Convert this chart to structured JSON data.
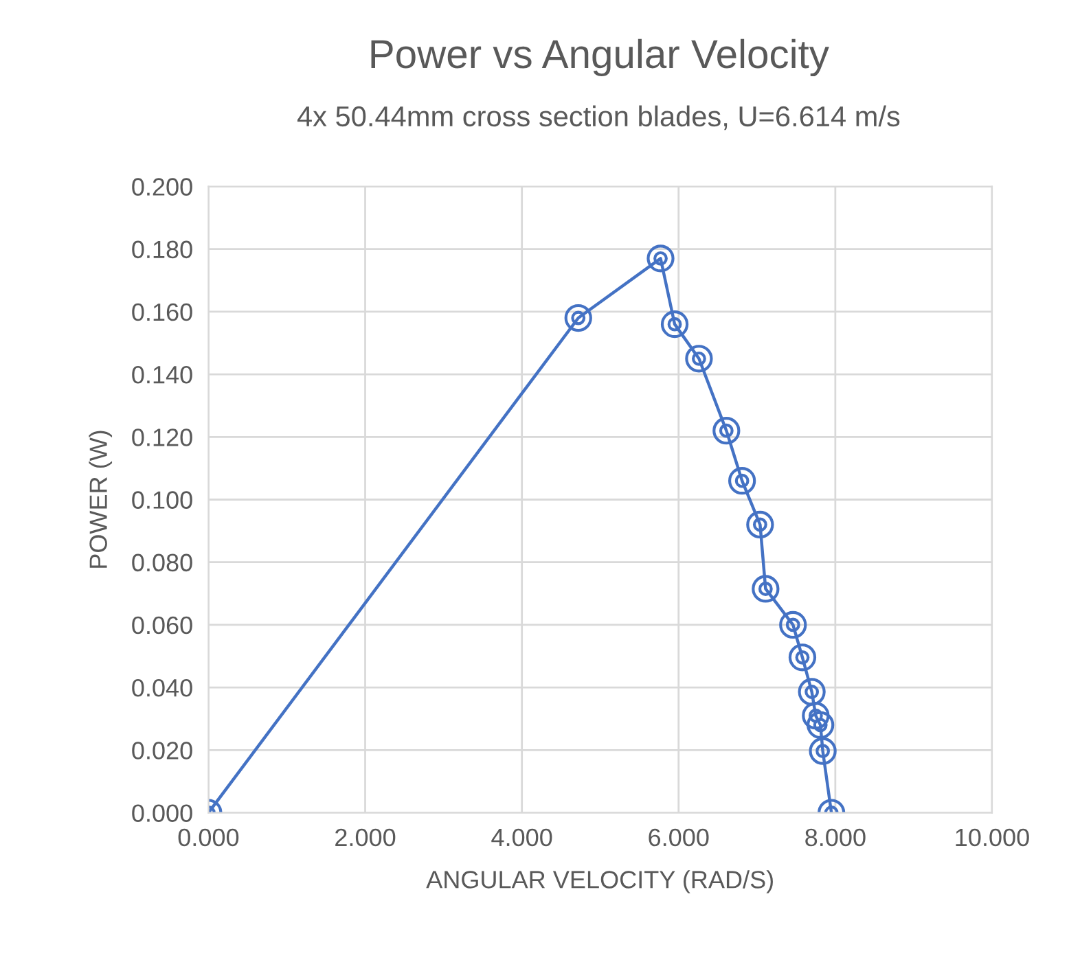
{
  "chart_data": {
    "type": "line",
    "title": "Power vs Angular Velocity",
    "subtitle": "4x 50.44mm cross section blades, U=6.614 m/s",
    "xlabel": "ANGULAR VELOCITY (RAD/S)",
    "ylabel": "POWER (W)",
    "x": [
      0,
      4.72,
      5.77,
      5.95,
      6.26,
      6.61,
      6.81,
      7.04,
      7.11,
      7.46,
      7.58,
      7.7,
      7.75,
      7.81,
      7.84,
      7.95
    ],
    "series": [
      {
        "color": "#4472c4",
        "values": [
          0,
          0.158,
          0.177,
          0.156,
          0.145,
          0.122,
          0.106,
          0.092,
          0.0715,
          0.06,
          0.0496,
          0.0386,
          0.031,
          0.028,
          0.0197,
          0
        ]
      }
    ],
    "xlim": [
      0,
      10
    ],
    "xticks": [
      {
        "value": 0,
        "label": "0.000"
      },
      {
        "value": 2,
        "label": "2.000"
      },
      {
        "value": 4,
        "label": "4.000"
      },
      {
        "value": 6,
        "label": "6.000"
      },
      {
        "value": 8,
        "label": "8.000"
      },
      {
        "value": 10,
        "label": "10.000"
      }
    ],
    "ylim": [
      0,
      0.2
    ],
    "yticks": [
      {
        "value": 0,
        "label": "0.000"
      },
      {
        "value": 0.02,
        "label": "0.020"
      },
      {
        "value": 0.04,
        "label": "0.040"
      },
      {
        "value": 0.06,
        "label": "0.060"
      },
      {
        "value": 0.08,
        "label": "0.080"
      },
      {
        "value": 0.1,
        "label": "0.100"
      },
      {
        "value": 0.12,
        "label": "0.120"
      },
      {
        "value": 0.14,
        "label": "0.140"
      },
      {
        "value": 0.16,
        "label": "0.160"
      },
      {
        "value": 0.18,
        "label": "0.180"
      },
      {
        "value": 0.2,
        "label": "0.200"
      }
    ],
    "grid": true,
    "marker": "circle",
    "line_style": "solid"
  }
}
